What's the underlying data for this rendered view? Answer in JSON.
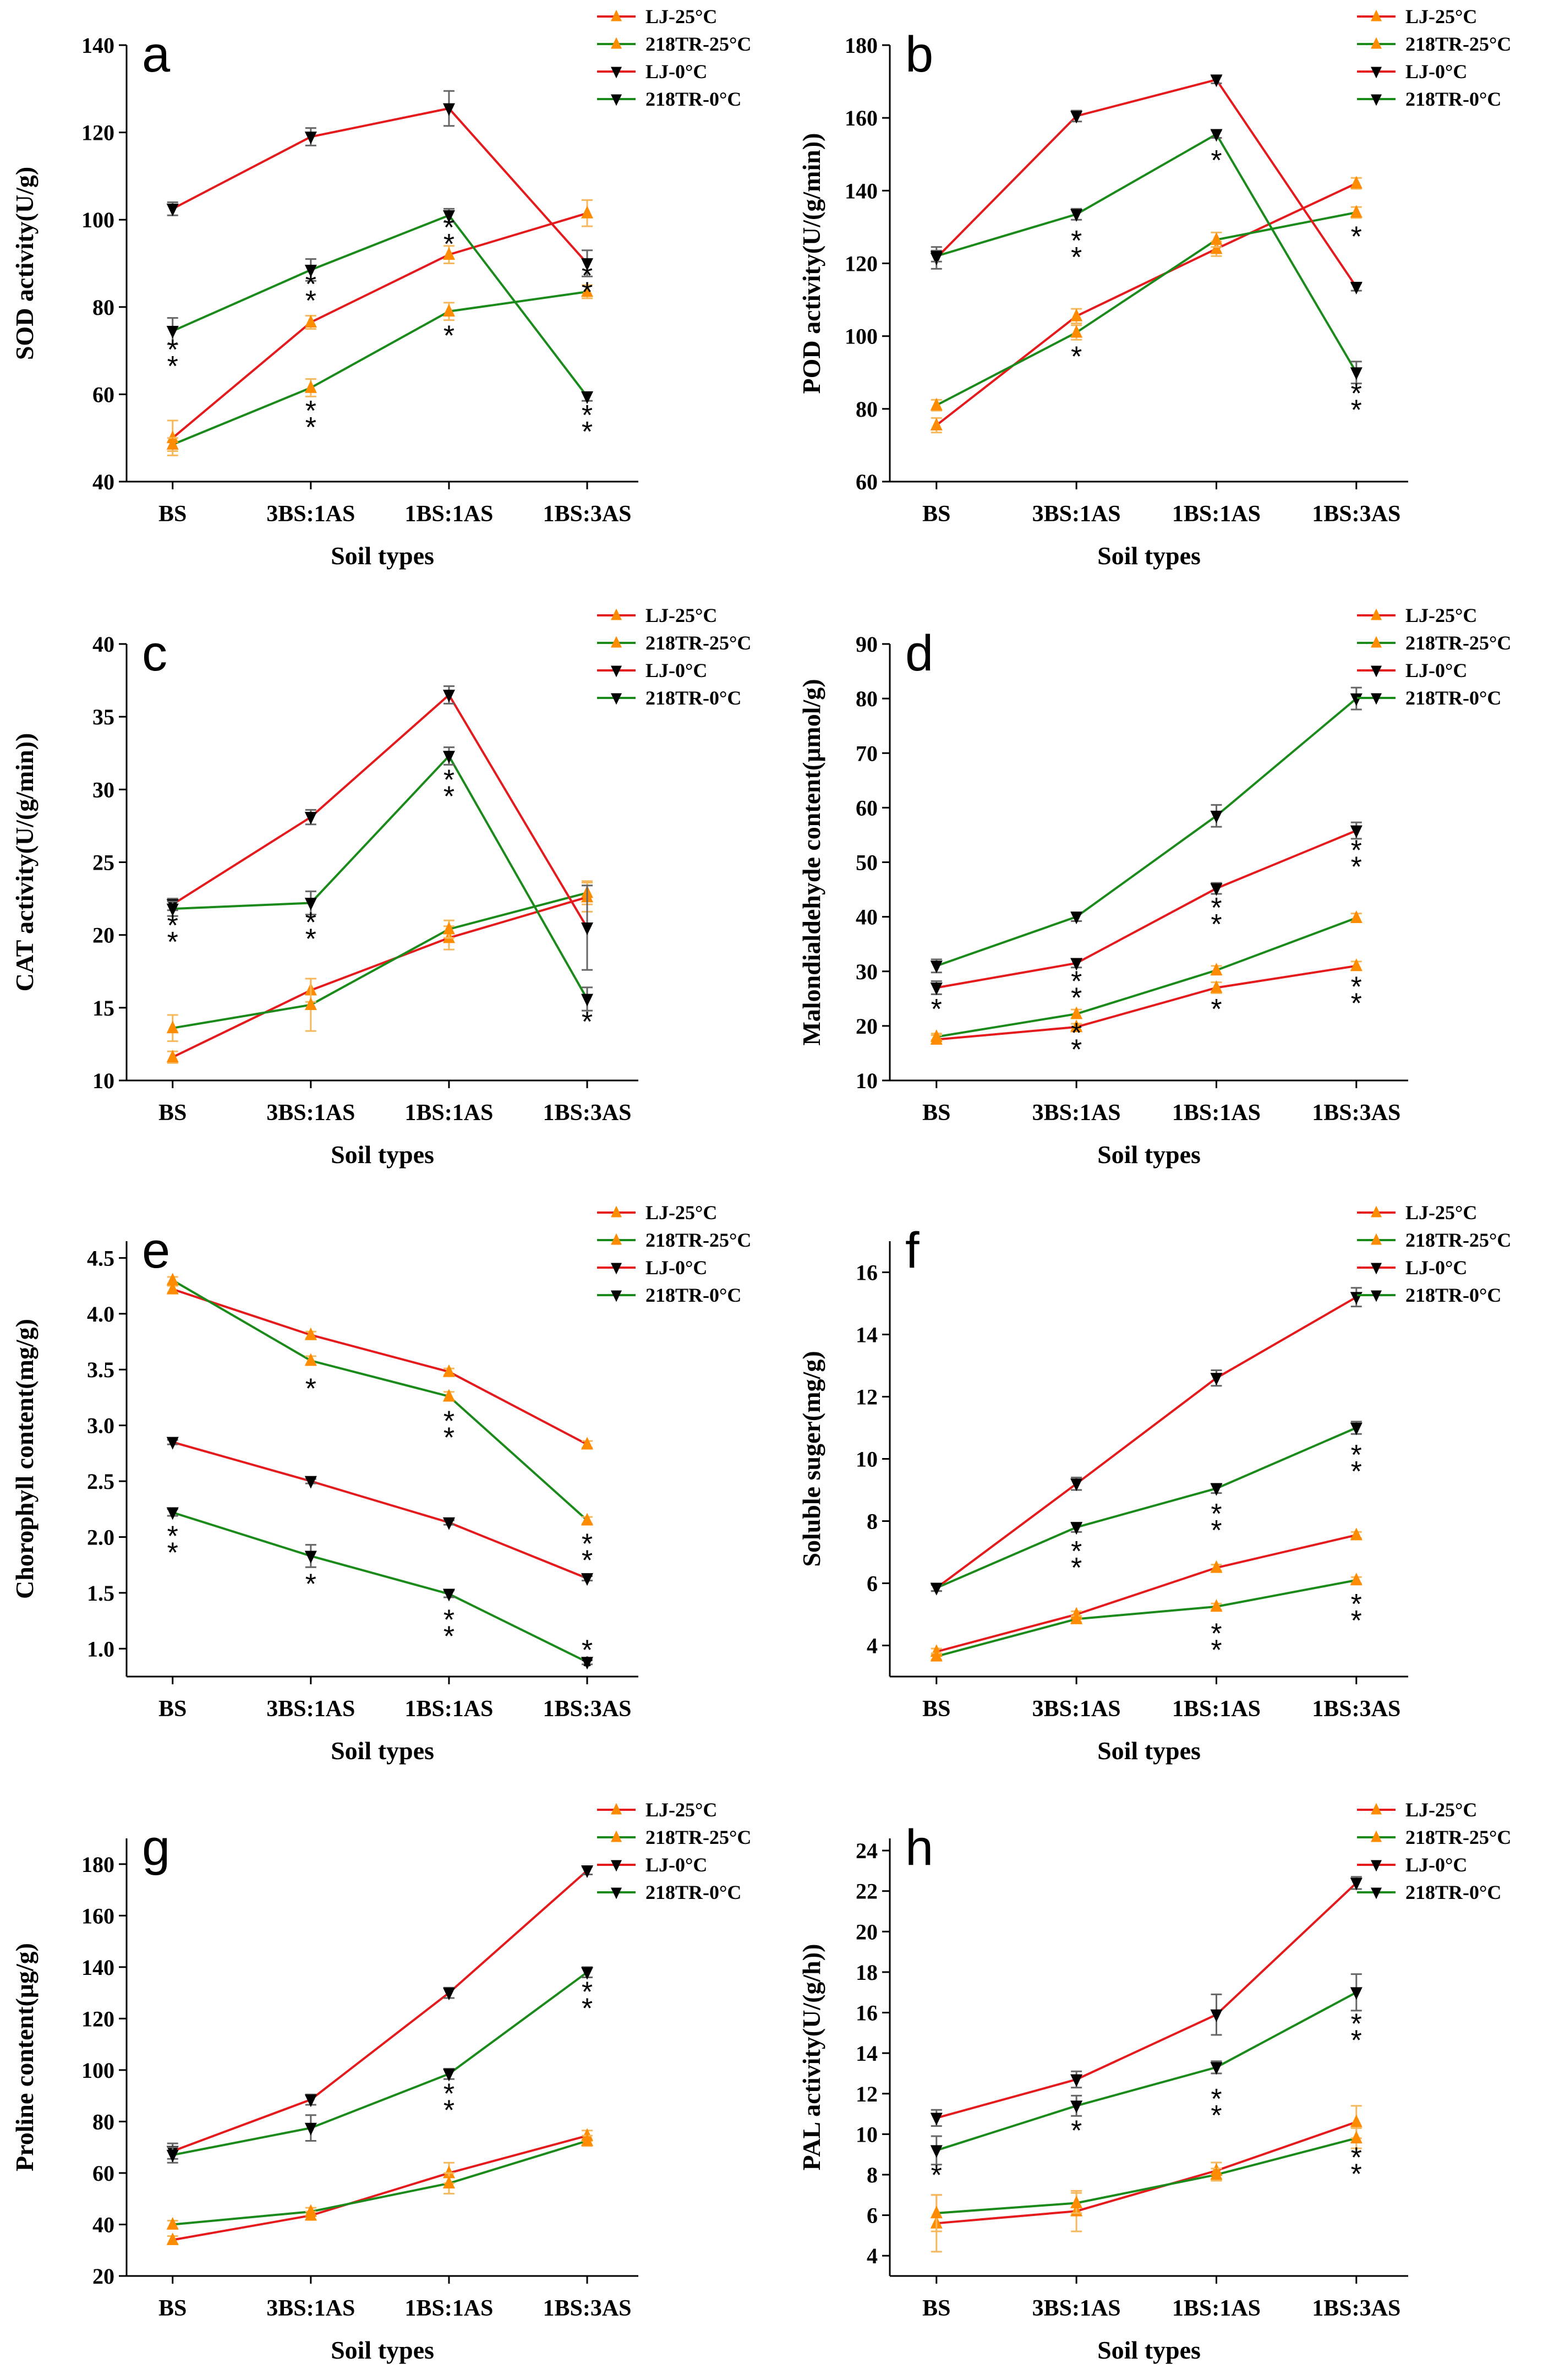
{
  "colors": {
    "LJ-25": "#ff8c00",
    "218TR-25": "#ff8c00",
    "LJ-0": "#000000",
    "218TR-0": "#000000",
    "line_LJ": "#e41a1c",
    "line_218TR": "#1a8a1a",
    "err_25": "#f5b85c",
    "err_0": "#666666"
  },
  "chart_data": [
    {
      "panel": "a",
      "type": "line",
      "xlabel": "Soil types",
      "ylabel": "SOD activity(U/g)",
      "categories": [
        "BS",
        "3BS:1AS",
        "1BS:1AS",
        "1BS:3AS"
      ],
      "ylim": [
        40,
        140
      ],
      "yticks": [
        "40",
        "60",
        "80",
        "100",
        "120",
        "140"
      ],
      "legend": [
        "LJ-25°C",
        "218TR-25°C",
        "LJ-0°C",
        "218TR-0°C"
      ],
      "series": [
        {
          "name": "LJ-25°C",
          "values": [
            50,
            76.5,
            92,
            101.5
          ],
          "errors": [
            4,
            1.5,
            2,
            3
          ]
        },
        {
          "name": "218TR-25°C",
          "values": [
            48.5,
            61.5,
            79,
            83.5
          ],
          "errors": [
            1.5,
            2,
            2,
            1.5
          ]
        },
        {
          "name": "LJ-0°C",
          "values": [
            102.5,
            119,
            125.5,
            90
          ],
          "errors": [
            1.5,
            2,
            4,
            3
          ]
        },
        {
          "name": "218TR-0°C",
          "values": [
            74.5,
            88.5,
            101,
            59.5
          ],
          "errors": [
            3,
            2.5,
            1.5,
            1
          ]
        }
      ],
      "annotations": [
        {
          "category": "BS",
          "value": 70,
          "text": "**"
        },
        {
          "category": "3BS:1AS",
          "value": 85,
          "text": "**"
        },
        {
          "category": "1BS:1AS",
          "value": 98,
          "text": "**"
        },
        {
          "category": "1BS:3AS",
          "value": 87,
          "text": "**"
        },
        {
          "category": "3BS:1AS",
          "value": 56,
          "text": "**"
        },
        {
          "category": "1BS:1AS",
          "value": 74,
          "text": "*"
        },
        {
          "category": "1BS:3AS",
          "value": 55,
          "text": "**"
        }
      ]
    },
    {
      "panel": "b",
      "type": "line",
      "xlabel": "Soil types",
      "ylabel": "POD activity(U/(g/min))",
      "categories": [
        "BS",
        "3BS:1AS",
        "1BS:1AS",
        "1BS:3AS"
      ],
      "ylim": [
        60,
        180
      ],
      "yticks": [
        "60",
        "80",
        "100",
        "120",
        "140",
        "160",
        "180"
      ],
      "legend": [
        "LJ-25°C",
        "218TR-25°C",
        "LJ-0°C",
        "218TR-0°C"
      ],
      "series": [
        {
          "name": "LJ-25°C",
          "values": [
            75.5,
            105.5,
            124,
            142
          ],
          "errors": [
            2,
            2,
            2,
            1.5
          ]
        },
        {
          "name": "218TR-25°C",
          "values": [
            81,
            101,
            126.5,
            134
          ],
          "errors": [
            1.5,
            2,
            2,
            1.5
          ]
        },
        {
          "name": "LJ-0°C",
          "values": [
            121.5,
            160.5,
            170.5,
            113.5
          ],
          "errors": [
            3,
            1.5,
            1,
            1
          ]
        },
        {
          "name": "218TR-0°C",
          "values": [
            122,
            133.5,
            155.5,
            90
          ],
          "errors": [
            1.5,
            1.5,
            1,
            3
          ]
        }
      ],
      "annotations": [
        {
          "category": "3BS:1AS",
          "value": 126,
          "text": "**"
        },
        {
          "category": "1BS:1AS",
          "value": 149,
          "text": "*"
        },
        {
          "category": "1BS:3AS",
          "value": 84,
          "text": "**"
        },
        {
          "category": "3BS:1AS",
          "value": 95,
          "text": "*"
        },
        {
          "category": "1BS:3AS",
          "value": 128,
          "text": "*"
        }
      ]
    },
    {
      "panel": "c",
      "type": "line",
      "xlabel": "Soil types",
      "ylabel": "CAT activity(U/(g/min))",
      "categories": [
        "BS",
        "3BS:1AS",
        "1BS:1AS",
        "1BS:3AS"
      ],
      "ylim": [
        10,
        40
      ],
      "yticks": [
        "10",
        "15",
        "20",
        "25",
        "30",
        "35",
        "40"
      ],
      "legend": [
        "LJ-25°C",
        "218TR-25°C",
        "LJ-0°C",
        "218TR-0°C"
      ],
      "series": [
        {
          "name": "LJ-25°C",
          "values": [
            11.6,
            16.2,
            19.8,
            22.6
          ],
          "errors": [
            0.4,
            0.8,
            0.8,
            1
          ]
        },
        {
          "name": "218TR-25°C",
          "values": [
            13.6,
            15.2,
            20.4,
            22.9
          ],
          "errors": [
            0.9,
            1.8,
            0.6,
            0.8
          ]
        },
        {
          "name": "LJ-0°C",
          "values": [
            22.1,
            28.1,
            36.5,
            20.5
          ],
          "errors": [
            0.4,
            0.5,
            0.6,
            2.9
          ]
        },
        {
          "name": "218TR-0°C",
          "values": [
            21.8,
            22.2,
            32.3,
            15.6
          ],
          "errors": [
            0.5,
            0.8,
            0.6,
            0.8
          ]
        }
      ],
      "annotations": [
        {
          "category": "BS",
          "value": 20.6,
          "text": "**"
        },
        {
          "category": "3BS:1AS",
          "value": 20.8,
          "text": "**"
        },
        {
          "category": "1BS:1AS",
          "value": 30.6,
          "text": "**"
        },
        {
          "category": "1BS:3AS",
          "value": 14.2,
          "text": "*"
        }
      ]
    },
    {
      "panel": "d",
      "type": "line",
      "xlabel": "Soil types",
      "ylabel": "Malondialdehyde content(μmol/g)",
      "categories": [
        "BS",
        "3BS:1AS",
        "1BS:1AS",
        "1BS:3AS"
      ],
      "ylim": [
        10,
        90
      ],
      "yticks": [
        "10",
        "20",
        "30",
        "40",
        "50",
        "60",
        "70",
        "80",
        "90"
      ],
      "legend": [
        "LJ-25°C",
        "218TR-25°C",
        "LJ-0°C",
        "218TR-0°C"
      ],
      "series": [
        {
          "name": "LJ-25°C",
          "values": [
            17.5,
            19.8,
            27,
            31
          ],
          "errors": [
            0.8,
            0.6,
            1,
            0.8
          ]
        },
        {
          "name": "218TR-25°C",
          "values": [
            18,
            22.2,
            30.2,
            39.8
          ],
          "errors": [
            0.6,
            0.8,
            0.8,
            0.8
          ]
        },
        {
          "name": "LJ-0°C",
          "values": [
            27,
            31.5,
            45.2,
            55.8
          ],
          "errors": [
            1.2,
            0.8,
            1,
            1.5
          ]
        },
        {
          "name": "218TR-0°C",
          "values": [
            31,
            40,
            58.5,
            80
          ],
          "errors": [
            1.2,
            0.8,
            2,
            2
          ]
        }
      ],
      "annotations": [
        {
          "category": "BS",
          "value": 23.5,
          "text": "*"
        },
        {
          "category": "3BS:1AS",
          "value": 28,
          "text": "**"
        },
        {
          "category": "1BS:1AS",
          "value": 41.5,
          "text": "**"
        },
        {
          "category": "1BS:3AS",
          "value": 52,
          "text": "**"
        },
        {
          "category": "3BS:1AS",
          "value": 18.5,
          "text": "**"
        },
        {
          "category": "1BS:1AS",
          "value": 23.5,
          "text": "*"
        },
        {
          "category": "1BS:3AS",
          "value": 27,
          "text": "**"
        }
      ]
    },
    {
      "panel": "e",
      "type": "line",
      "xlabel": "Soil types",
      "ylabel": "Chorophyll content(mg/g)",
      "categories": [
        "BS",
        "3BS:1AS",
        "1BS:1AS",
        "1BS:3AS"
      ],
      "ylim": [
        0.75,
        4.65
      ],
      "yticks": [
        "1.0",
        "1.5",
        "2.0",
        "2.5",
        "3.0",
        "3.5",
        "4.0",
        "4.5"
      ],
      "legend": [
        "LJ-25°C",
        "218TR-25°C",
        "LJ-0°C",
        "218TR-0°C"
      ],
      "series": [
        {
          "name": "LJ-25°C",
          "values": [
            4.22,
            3.81,
            3.48,
            2.83
          ],
          "errors": [
            0.03,
            0.03,
            0.03,
            0.03
          ]
        },
        {
          "name": "218TR-25°C",
          "values": [
            4.3,
            3.58,
            3.26,
            2.15
          ],
          "errors": [
            0.03,
            0.04,
            0.04,
            0.03
          ]
        },
        {
          "name": "LJ-0°C",
          "values": [
            2.85,
            2.5,
            2.13,
            1.63
          ],
          "errors": [
            0.02,
            0.02,
            0.02,
            0.02
          ]
        },
        {
          "name": "218TR-0°C",
          "values": [
            2.22,
            1.83,
            1.49,
            0.88
          ],
          "errors": [
            0.03,
            0.1,
            0.03,
            0.02
          ]
        }
      ],
      "annotations": [
        {
          "category": "BS",
          "value": 2.0,
          "text": "**"
        },
        {
          "category": "3BS:1AS",
          "value": 1.6,
          "text": "*"
        },
        {
          "category": "1BS:1AS",
          "value": 1.25,
          "text": "**"
        },
        {
          "category": "1BS:3AS",
          "value": 0.98,
          "text": "**"
        },
        {
          "category": "3BS:1AS",
          "value": 3.35,
          "text": "*"
        },
        {
          "category": "1BS:1AS",
          "value": 3.03,
          "text": "**"
        },
        {
          "category": "1BS:3AS",
          "value": 1.93,
          "text": "**"
        }
      ]
    },
    {
      "panel": "f",
      "type": "line",
      "xlabel": "Soil types",
      "ylabel": "Soluble suger(mg/g)",
      "categories": [
        "BS",
        "3BS:1AS",
        "1BS:1AS",
        "1BS:3AS"
      ],
      "ylim": [
        3,
        17
      ],
      "yticks": [
        "4",
        "6",
        "8",
        "10",
        "12",
        "14",
        "16"
      ],
      "legend": [
        "LJ-25°C",
        "218TR-25°C",
        "LJ-0°C",
        "218TR-0°C"
      ],
      "series": [
        {
          "name": "LJ-25°C",
          "values": [
            3.8,
            5,
            6.5,
            7.55
          ],
          "errors": [
            0.1,
            0.1,
            0.1,
            0.1
          ]
        },
        {
          "name": "218TR-25°C",
          "values": [
            3.65,
            4.85,
            5.25,
            6.1
          ],
          "errors": [
            0.1,
            0.1,
            0.1,
            0.1
          ]
        },
        {
          "name": "LJ-0°C",
          "values": [
            5.85,
            9.2,
            12.6,
            15.2
          ],
          "errors": [
            0.1,
            0.2,
            0.25,
            0.3
          ]
        },
        {
          "name": "218TR-0°C",
          "values": [
            5.85,
            7.8,
            9.05,
            11.0
          ],
          "errors": [
            0.1,
            0.15,
            0.15,
            0.2
          ]
        }
      ],
      "annotations": [
        {
          "category": "3BS:1AS",
          "value": 7.0,
          "text": "**"
        },
        {
          "category": "1BS:1AS",
          "value": 8.2,
          "text": "**"
        },
        {
          "category": "1BS:3AS",
          "value": 10.1,
          "text": "**"
        },
        {
          "category": "1BS:1AS",
          "value": 4.35,
          "text": "**"
        },
        {
          "category": "1BS:3AS",
          "value": 5.3,
          "text": "**"
        }
      ]
    },
    {
      "panel": "g",
      "type": "line",
      "xlabel": "Soil types",
      "ylabel": "Proline content(μg/g)",
      "categories": [
        "BS",
        "3BS:1AS",
        "1BS:1AS",
        "1BS:3AS"
      ],
      "ylim": [
        20,
        190
      ],
      "yticks": [
        "20",
        "40",
        "60",
        "80",
        "100",
        "120",
        "140",
        "160",
        "180"
      ],
      "legend": [
        "LJ-25°C",
        "218TR-25°C",
        "LJ-0°C",
        "218TR-0°C"
      ],
      "series": [
        {
          "name": "LJ-25°C",
          "values": [
            34,
            43.5,
            60,
            74.5
          ],
          "errors": [
            1.5,
            1.5,
            4,
            2
          ]
        },
        {
          "name": "218TR-25°C",
          "values": [
            40,
            45,
            56,
            72.5
          ],
          "errors": [
            1.5,
            1.5,
            4,
            2
          ]
        },
        {
          "name": "LJ-0°C",
          "values": [
            68.5,
            88.5,
            130,
            177.5
          ],
          "errors": [
            3,
            2,
            2,
            1.5
          ]
        },
        {
          "name": "218TR-0°C",
          "values": [
            67,
            77.5,
            98.5,
            138
          ],
          "errors": [
            3,
            5,
            2,
            2
          ]
        }
      ],
      "annotations": [
        {
          "category": "1BS:1AS",
          "value": 90.5,
          "text": "**"
        },
        {
          "category": "1BS:3AS",
          "value": 130,
          "text": "**"
        }
      ]
    },
    {
      "panel": "h",
      "type": "line",
      "xlabel": "Soil types",
      "ylabel": "PAL activity(U/(g/h))",
      "categories": [
        "BS",
        "3BS:1AS",
        "1BS:1AS",
        "1BS:3AS"
      ],
      "ylim": [
        3,
        24.6
      ],
      "yticks": [
        "4",
        "6",
        "8",
        "10",
        "12",
        "14",
        "16",
        "18",
        "20",
        "22",
        "24"
      ],
      "legend": [
        "LJ-25°C",
        "218TR-25°C",
        "LJ-0°C",
        "218TR-0°C"
      ],
      "series": [
        {
          "name": "LJ-25°C",
          "values": [
            5.6,
            6.2,
            8.2,
            10.6
          ],
          "errors": [
            1.4,
            1,
            0.4,
            0.8
          ]
        },
        {
          "name": "218TR-25°C",
          "values": [
            6.1,
            6.6,
            8,
            9.8
          ],
          "errors": [
            0.9,
            0.5,
            0.3,
            0.5
          ]
        },
        {
          "name": "LJ-0°C",
          "values": [
            10.8,
            12.7,
            15.9,
            22.4
          ],
          "errors": [
            0.4,
            0.4,
            1,
            0.3
          ]
        },
        {
          "name": "218TR-0°C",
          "values": [
            9.2,
            11.4,
            13.3,
            17
          ],
          "errors": [
            0.7,
            0.5,
            0.3,
            0.9
          ]
        }
      ],
      "annotations": [
        {
          "category": "BS",
          "value": 8.1,
          "text": "*"
        },
        {
          "category": "3BS:1AS",
          "value": 10.3,
          "text": "*"
        },
        {
          "category": "1BS:1AS",
          "value": 11.7,
          "text": "**"
        },
        {
          "category": "1BS:3AS",
          "value": 15.4,
          "text": "**"
        },
        {
          "category": "1BS:3AS",
          "value": 8.8,
          "text": "**"
        }
      ]
    }
  ]
}
